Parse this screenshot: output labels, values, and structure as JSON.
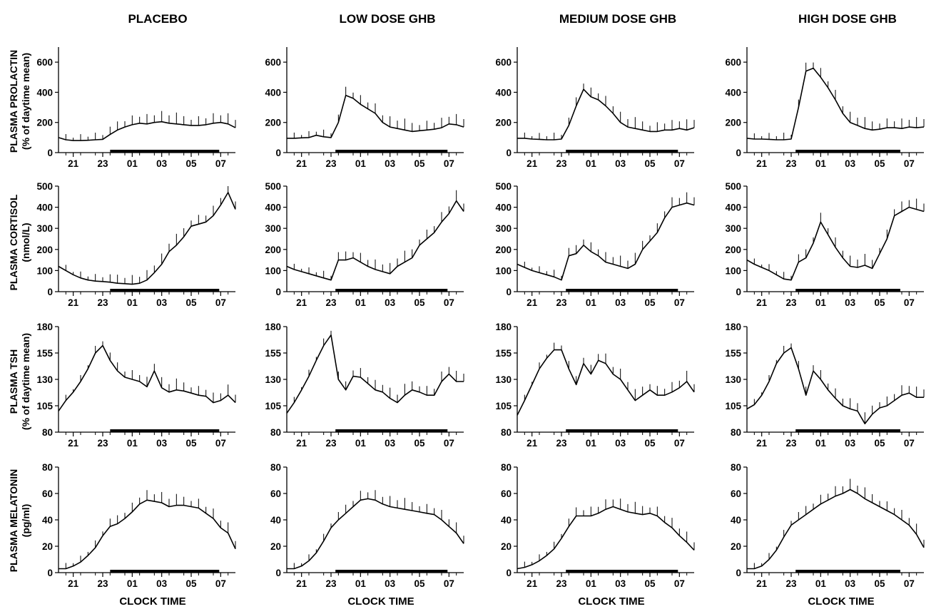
{
  "figure": {
    "columns": [
      "PLACEBO",
      "LOW DOSE GHB",
      "MEDIUM DOSE GHB",
      "HIGH DOSE GHB"
    ],
    "rows": [
      {
        "title": "PLASMA PROLACTIN",
        "subtitle": "(% of daytime mean)",
        "yticks": [
          "0",
          "200",
          "400",
          "600"
        ],
        "ylim": [
          0,
          700
        ]
      },
      {
        "title": "PLASMA CORTISOL",
        "subtitle": "(nmol/L)",
        "yticks": [
          "0",
          "100",
          "200",
          "300",
          "400",
          "500"
        ],
        "ylim": [
          0,
          500
        ]
      },
      {
        "title": "PLASMA TSH",
        "subtitle": "(% of daytime mean)",
        "yticks": [
          "80",
          "105",
          "130",
          "155",
          "180"
        ],
        "ylim": [
          80,
          180
        ]
      },
      {
        "title": "PLASMA MELATONIN",
        "subtitle": "(pg/ml)",
        "yticks": [
          "0",
          "20",
          "40",
          "60",
          "80"
        ],
        "ylim": [
          0,
          80
        ]
      }
    ],
    "xticks": [
      "21",
      "23",
      "01",
      "03",
      "05",
      "07"
    ],
    "xlabel": "CLOCK TIME",
    "colors": {
      "line": "#000000",
      "background": "#ffffff"
    }
  },
  "chart_data": [
    {
      "type": "line",
      "row": "PLASMA PROLACTIN",
      "column": "PLACEBO",
      "x_hours": [
        20.0,
        20.5,
        21.0,
        21.5,
        22.0,
        22.5,
        23.0,
        23.5,
        24.0,
        24.5,
        25.0,
        25.5,
        26.0,
        26.5,
        27.0,
        27.5,
        28.0,
        28.5,
        29.0,
        29.5,
        30.0,
        30.5,
        31.0,
        31.5,
        32.0
      ],
      "y": [
        100,
        85,
        80,
        80,
        82,
        85,
        88,
        120,
        150,
        170,
        185,
        195,
        190,
        200,
        205,
        195,
        190,
        185,
        180,
        180,
        185,
        195,
        200,
        190,
        165
      ],
      "sleep_period": [
        23.5,
        30.9
      ],
      "ylim": [
        0,
        700
      ]
    },
    {
      "type": "line",
      "row": "PLASMA PROLACTIN",
      "column": "LOW DOSE GHB",
      "x_hours": [
        20.0,
        20.5,
        21.0,
        21.5,
        22.0,
        22.5,
        23.0,
        23.5,
        24.0,
        24.5,
        25.0,
        25.5,
        26.0,
        26.5,
        27.0,
        27.5,
        28.0,
        28.5,
        29.0,
        29.5,
        30.0,
        30.5,
        31.0,
        31.5,
        32.0
      ],
      "y": [
        95,
        95,
        98,
        100,
        115,
        105,
        100,
        200,
        380,
        360,
        320,
        290,
        260,
        200,
        170,
        160,
        150,
        140,
        145,
        150,
        155,
        165,
        190,
        185,
        170
      ],
      "sleep_period": [
        23.3,
        30.9
      ],
      "ylim": [
        0,
        700
      ]
    },
    {
      "type": "line",
      "row": "PLASMA PROLACTIN",
      "column": "MEDIUM DOSE GHB",
      "x_hours": [
        20.0,
        20.5,
        21.0,
        21.5,
        22.0,
        22.5,
        23.0,
        23.5,
        24.0,
        24.5,
        25.0,
        25.5,
        26.0,
        26.5,
        27.0,
        27.5,
        28.0,
        28.5,
        29.0,
        29.5,
        30.0,
        30.5,
        31.0,
        31.5,
        32.0
      ],
      "y": [
        95,
        95,
        90,
        88,
        85,
        85,
        90,
        180,
        310,
        420,
        370,
        350,
        310,
        260,
        200,
        170,
        160,
        150,
        140,
        140,
        150,
        150,
        160,
        150,
        165
      ],
      "sleep_period": [
        23.3,
        30.9
      ],
      "ylim": [
        0,
        700
      ]
    },
    {
      "type": "line",
      "row": "PLASMA PROLACTIN",
      "column": "HIGH DOSE GHB",
      "x_hours": [
        20.0,
        20.5,
        21.0,
        21.5,
        22.0,
        22.5,
        23.0,
        23.5,
        24.0,
        24.5,
        25.0,
        25.5,
        26.0,
        26.5,
        27.0,
        27.5,
        28.0,
        28.5,
        29.0,
        29.5,
        30.0,
        30.5,
        31.0,
        31.5,
        32.0
      ],
      "y": [
        95,
        90,
        90,
        88,
        85,
        85,
        90,
        300,
        540,
        560,
        500,
        430,
        350,
        260,
        200,
        180,
        160,
        150,
        155,
        165,
        165,
        160,
        170,
        165,
        170
      ],
      "sleep_period": [
        23.3,
        30.4
      ],
      "ylim": [
        0,
        700
      ]
    },
    {
      "type": "line",
      "row": "PLASMA CORTISOL",
      "column": "PLACEBO",
      "x_hours": [
        20.0,
        20.5,
        21.0,
        21.5,
        22.0,
        22.5,
        23.0,
        23.5,
        24.0,
        24.5,
        25.0,
        25.5,
        26.0,
        26.5,
        27.0,
        27.5,
        28.0,
        28.5,
        29.0,
        29.5,
        30.0,
        30.5,
        31.0,
        31.5,
        32.0
      ],
      "y": [
        120,
        100,
        80,
        65,
        55,
        50,
        48,
        45,
        40,
        38,
        35,
        40,
        55,
        90,
        130,
        190,
        220,
        260,
        310,
        320,
        330,
        360,
        410,
        470,
        390
      ],
      "sleep_period": [
        23.5,
        30.9
      ],
      "ylim": [
        0,
        500
      ]
    },
    {
      "type": "line",
      "row": "PLASMA CORTISOL",
      "column": "LOW DOSE GHB",
      "x_hours": [
        20.0,
        20.5,
        21.0,
        21.5,
        22.0,
        22.5,
        23.0,
        23.5,
        24.0,
        24.5,
        25.0,
        25.5,
        26.0,
        26.5,
        27.0,
        27.5,
        28.0,
        28.5,
        29.0,
        29.5,
        30.0,
        30.5,
        31.0,
        31.5,
        32.0
      ],
      "y": [
        120,
        105,
        95,
        85,
        75,
        65,
        55,
        150,
        150,
        160,
        140,
        120,
        105,
        95,
        85,
        120,
        140,
        160,
        220,
        250,
        280,
        330,
        370,
        430,
        380
      ],
      "sleep_period": [
        23.3,
        30.9
      ],
      "ylim": [
        0,
        500
      ]
    },
    {
      "type": "line",
      "row": "PLASMA CORTISOL",
      "column": "MEDIUM DOSE GHB",
      "x_hours": [
        20.0,
        20.5,
        21.0,
        21.5,
        22.0,
        22.5,
        23.0,
        23.5,
        24.0,
        24.5,
        25.0,
        25.5,
        26.0,
        26.5,
        27.0,
        27.5,
        28.0,
        28.5,
        29.0,
        29.5,
        30.0,
        30.5,
        31.0,
        31.5,
        32.0
      ],
      "y": [
        130,
        115,
        100,
        90,
        80,
        70,
        55,
        170,
        180,
        220,
        190,
        170,
        140,
        130,
        120,
        110,
        130,
        200,
        240,
        280,
        350,
        400,
        410,
        420,
        410
      ],
      "sleep_period": [
        23.3,
        30.9
      ],
      "ylim": [
        0,
        500
      ]
    },
    {
      "type": "line",
      "row": "PLASMA CORTISOL",
      "column": "HIGH DOSE GHB",
      "x_hours": [
        20.0,
        20.5,
        21.0,
        21.5,
        22.0,
        22.5,
        23.0,
        23.5,
        24.0,
        24.5,
        25.0,
        25.5,
        26.0,
        26.5,
        27.0,
        27.5,
        28.0,
        28.5,
        29.0,
        29.5,
        30.0,
        30.5,
        31.0,
        31.5,
        32.0
      ],
      "y": [
        150,
        130,
        115,
        100,
        80,
        60,
        55,
        140,
        160,
        230,
        330,
        270,
        210,
        160,
        120,
        115,
        125,
        110,
        180,
        250,
        360,
        380,
        400,
        390,
        380
      ],
      "sleep_period": [
        23.3,
        30.4
      ],
      "ylim": [
        0,
        500
      ]
    },
    {
      "type": "line",
      "row": "PLASMA TSH",
      "column": "PLACEBO",
      "x_hours": [
        20.0,
        20.5,
        21.0,
        21.5,
        22.0,
        22.5,
        23.0,
        23.5,
        24.0,
        24.5,
        25.0,
        25.5,
        26.0,
        26.5,
        27.0,
        27.5,
        28.0,
        28.5,
        29.0,
        29.5,
        30.0,
        30.5,
        31.0,
        31.5,
        32.0
      ],
      "y": [
        100,
        110,
        118,
        128,
        140,
        155,
        162,
        148,
        138,
        132,
        130,
        128,
        123,
        138,
        122,
        118,
        120,
        119,
        117,
        115,
        114,
        108,
        110,
        115,
        108
      ],
      "sleep_period": [
        23.5,
        30.9
      ],
      "ylim": [
        80,
        180
      ]
    },
    {
      "type": "line",
      "row": "PLASMA TSH",
      "column": "LOW DOSE GHB",
      "x_hours": [
        20.0,
        20.5,
        21.0,
        21.5,
        22.0,
        22.5,
        23.0,
        23.5,
        24.0,
        24.5,
        25.0,
        25.5,
        26.0,
        26.5,
        27.0,
        27.5,
        28.0,
        28.5,
        29.0,
        29.5,
        30.0,
        30.5,
        31.0,
        31.5,
        32.0
      ],
      "y": [
        98,
        108,
        120,
        133,
        148,
        162,
        172,
        130,
        120,
        133,
        132,
        126,
        120,
        118,
        112,
        108,
        115,
        120,
        118,
        115,
        115,
        128,
        135,
        128,
        128
      ],
      "sleep_period": [
        23.3,
        30.9
      ],
      "ylim": [
        80,
        180
      ]
    },
    {
      "type": "line",
      "row": "PLASMA TSH",
      "column": "MEDIUM DOSE GHB",
      "x_hours": [
        20.0,
        20.5,
        21.0,
        21.5,
        22.0,
        22.5,
        23.0,
        23.5,
        24.0,
        24.5,
        25.0,
        25.5,
        26.0,
        26.5,
        27.0,
        27.5,
        28.0,
        28.5,
        29.0,
        29.5,
        30.0,
        30.5,
        31.0,
        31.5,
        32.0
      ],
      "y": [
        96,
        110,
        125,
        140,
        150,
        158,
        158,
        140,
        125,
        145,
        135,
        148,
        145,
        135,
        130,
        120,
        110,
        115,
        120,
        115,
        115,
        118,
        122,
        128,
        118
      ],
      "sleep_period": [
        23.3,
        30.9
      ],
      "ylim": [
        80,
        180
      ]
    },
    {
      "type": "line",
      "row": "PLASMA TSH",
      "column": "HIGH DOSE GHB",
      "x_hours": [
        20.0,
        20.5,
        21.0,
        21.5,
        22.0,
        22.5,
        23.0,
        23.5,
        24.0,
        24.5,
        25.0,
        25.5,
        26.0,
        26.5,
        27.0,
        27.5,
        28.0,
        28.5,
        29.0,
        29.5,
        30.0,
        30.5,
        31.0,
        31.5,
        32.0
      ],
      "y": [
        102,
        106,
        115,
        128,
        145,
        155,
        160,
        140,
        115,
        138,
        130,
        120,
        112,
        105,
        102,
        100,
        88,
        97,
        103,
        105,
        110,
        115,
        117,
        113,
        113
      ],
      "sleep_period": [
        23.3,
        30.4
      ],
      "ylim": [
        80,
        180
      ]
    },
    {
      "type": "line",
      "row": "PLASMA MELATONIN",
      "column": "PLACEBO",
      "x_hours": [
        20.0,
        20.5,
        21.0,
        21.5,
        22.0,
        22.5,
        23.0,
        23.5,
        24.0,
        24.5,
        25.0,
        25.5,
        26.0,
        26.5,
        27.0,
        27.5,
        28.0,
        28.5,
        29.0,
        29.5,
        30.0,
        30.5,
        31.0,
        31.5,
        32.0
      ],
      "y": [
        3,
        3,
        5,
        8,
        13,
        19,
        28,
        35,
        37,
        41,
        46,
        52,
        55,
        54,
        53,
        50,
        51,
        51,
        50,
        49,
        45,
        41,
        34,
        30,
        18
      ],
      "sleep_period": [
        23.5,
        30.9
      ],
      "ylim": [
        0,
        80
      ]
    },
    {
      "type": "line",
      "row": "PLASMA MELATONIN",
      "column": "LOW DOSE GHB",
      "x_hours": [
        20.0,
        20.5,
        21.0,
        21.5,
        22.0,
        22.5,
        23.0,
        23.5,
        24.0,
        24.5,
        25.0,
        25.5,
        26.0,
        26.5,
        27.0,
        27.5,
        28.0,
        28.5,
        29.0,
        29.5,
        30.0,
        30.5,
        31.0,
        31.5,
        32.0
      ],
      "y": [
        3,
        3,
        5,
        9,
        15,
        24,
        34,
        40,
        45,
        50,
        55,
        56,
        55,
        52,
        50,
        49,
        48,
        47,
        46,
        45,
        44,
        40,
        35,
        30,
        22
      ],
      "sleep_period": [
        23.3,
        30.9
      ],
      "ylim": [
        0,
        80
      ]
    },
    {
      "type": "line",
      "row": "PLASMA MELATONIN",
      "column": "MEDIUM DOSE GHB",
      "x_hours": [
        20.0,
        20.5,
        21.0,
        21.5,
        22.0,
        22.5,
        23.0,
        23.5,
        24.0,
        24.5,
        25.0,
        25.5,
        26.0,
        26.5,
        27.0,
        27.5,
        28.0,
        28.5,
        29.0,
        29.5,
        30.0,
        30.5,
        31.0,
        31.5,
        32.0
      ],
      "y": [
        3,
        4,
        6,
        9,
        13,
        18,
        26,
        35,
        43,
        43,
        43,
        45,
        48,
        50,
        48,
        46,
        45,
        44,
        45,
        43,
        38,
        34,
        28,
        23,
        17
      ],
      "sleep_period": [
        23.3,
        30.9
      ],
      "ylim": [
        0,
        80
      ]
    },
    {
      "type": "line",
      "row": "PLASMA MELATONIN",
      "column": "HIGH DOSE GHB",
      "x_hours": [
        20.0,
        20.5,
        21.0,
        21.5,
        22.0,
        22.5,
        23.0,
        23.5,
        24.0,
        24.5,
        25.0,
        25.5,
        26.0,
        26.5,
        27.0,
        27.5,
        28.0,
        28.5,
        29.0,
        29.5,
        30.0,
        30.5,
        31.0,
        31.5,
        32.0
      ],
      "y": [
        3,
        3,
        5,
        10,
        17,
        27,
        36,
        40,
        44,
        48,
        52,
        55,
        58,
        60,
        63,
        60,
        56,
        53,
        50,
        47,
        44,
        40,
        36,
        29,
        19
      ],
      "sleep_period": [
        23.3,
        30.4
      ],
      "ylim": [
        0,
        80
      ]
    }
  ]
}
